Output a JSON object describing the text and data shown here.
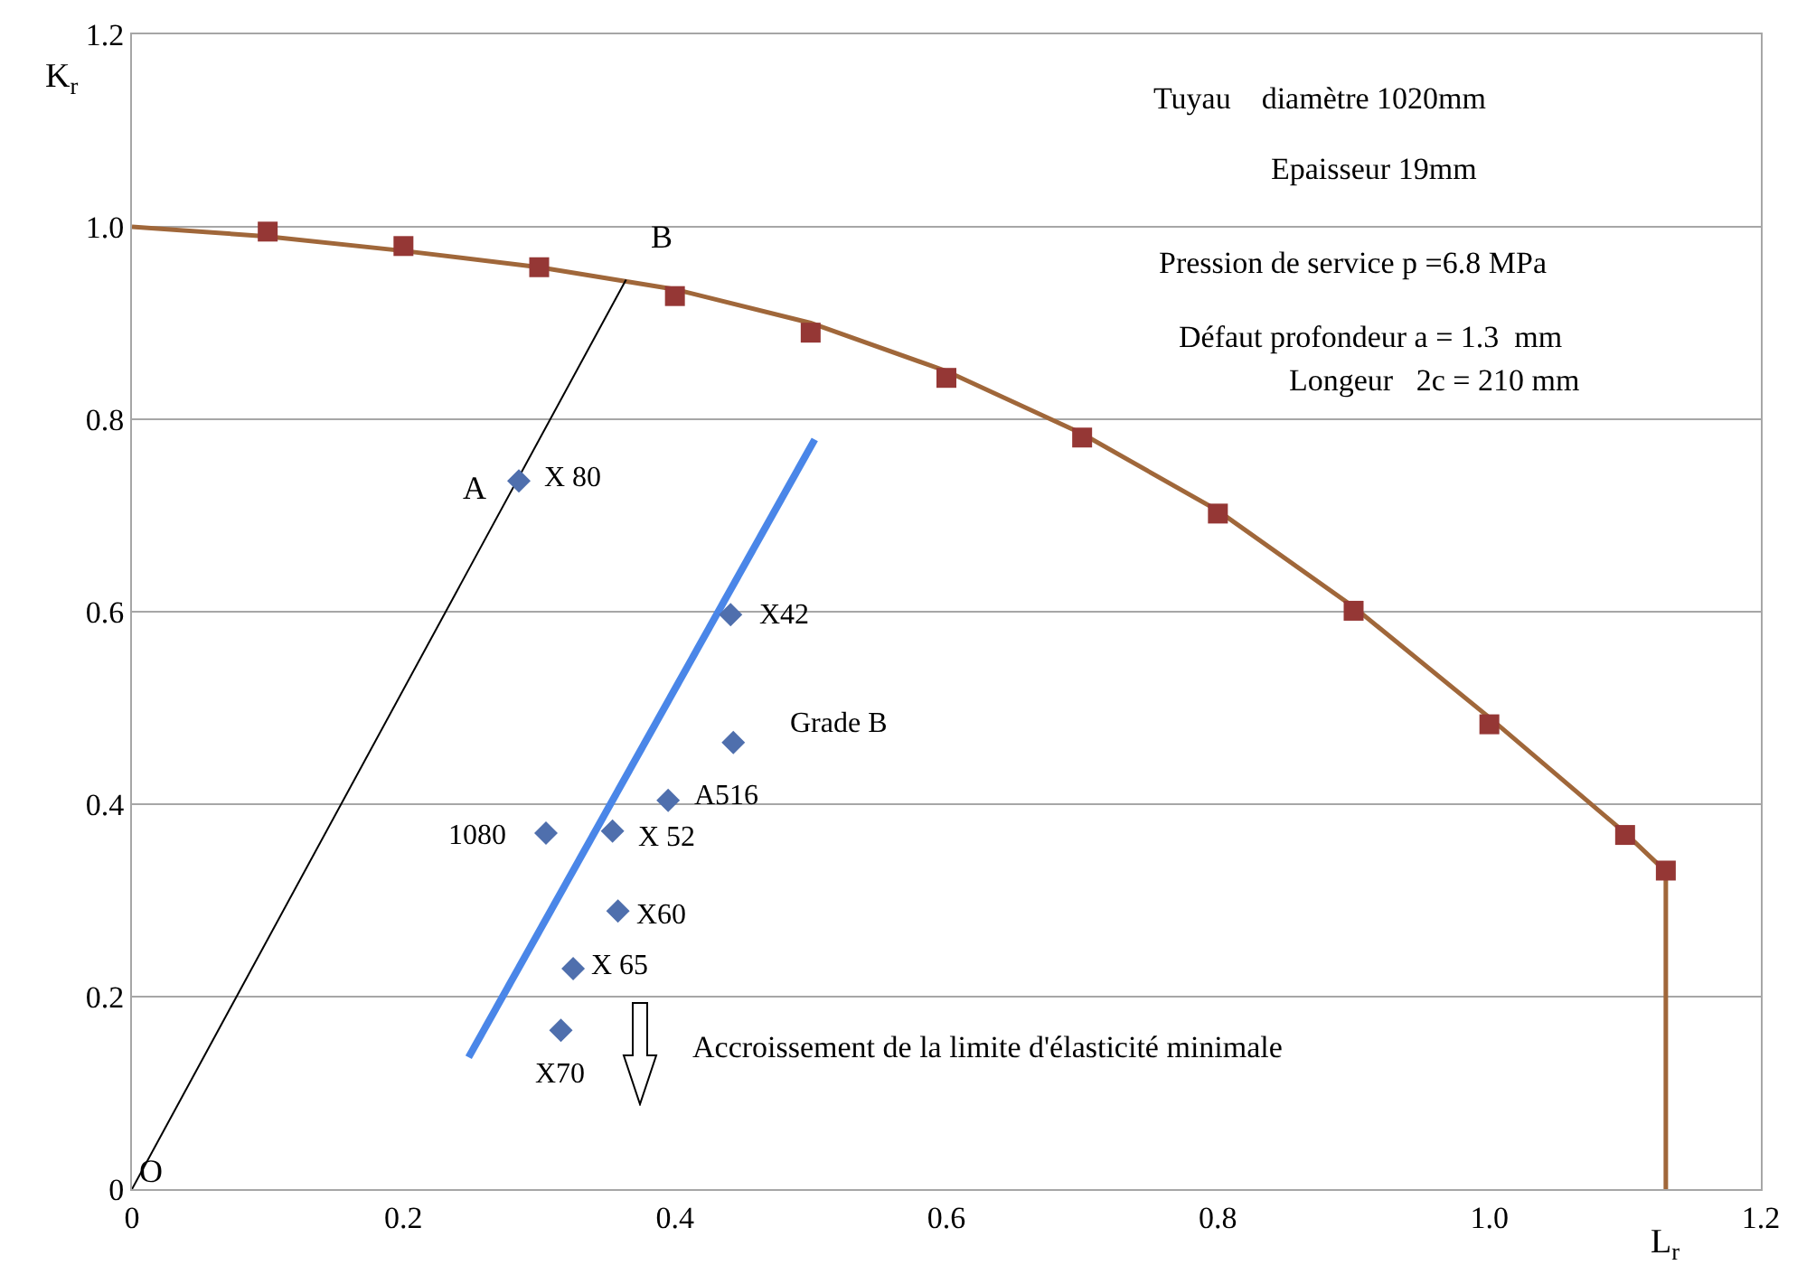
{
  "chart_data": {
    "type": "scatter",
    "xlabel": "L$_{r}$",
    "ylabel": "K$_{r}$",
    "xlim": [
      0,
      1.2
    ],
    "ylim": [
      0,
      1.2
    ],
    "xticks": [
      0,
      0.2,
      0.4,
      0.6,
      0.8,
      {
        "value": 1.0,
        "label": "1.0"
      },
      1.2
    ],
    "yticks": [
      0,
      0.2,
      0.4,
      0.6,
      0.8,
      {
        "value": 1.0,
        "label": "1.0"
      },
      1.2
    ],
    "grid": "y",
    "series": [
      {
        "type": "line",
        "color": "#a0673a",
        "marker": "none",
        "line_style": "solid",
        "x": [
          0,
          0.1,
          0.2,
          0.3,
          0.4,
          0.5,
          0.6,
          0.7,
          0.8,
          0.9,
          1.0,
          1.1,
          1.13,
          1.13
        ],
        "values": [
          1.0,
          0.99,
          0.975,
          0.958,
          0.935,
          0.9,
          0.85,
          0.785,
          0.705,
          0.605,
          0.49,
          0.37,
          0.33,
          0
        ]
      },
      {
        "color": "#953735",
        "marker": "square",
        "x": [
          0.1,
          0.2,
          0.3,
          0.4,
          0.5,
          0.6,
          0.7,
          0.8,
          0.9,
          1.0,
          1.1,
          1.13
        ],
        "values": [
          0.995,
          0.98,
          0.958,
          0.928,
          0.89,
          0.843,
          0.781,
          0.702,
          0.601,
          0.483,
          0.368,
          0.331
        ]
      },
      {
        "type": "line",
        "color": "#000000",
        "marker": "none",
        "line_style": "solid",
        "x": [
          0,
          0.364
        ],
        "values": [
          0,
          0.945
        ]
      },
      {
        "type": "line",
        "color": "#4a86e8",
        "marker": "none",
        "line_style": "solid",
        "x": [
          0.248,
          0.503
        ],
        "values": [
          0.137,
          0.779
        ]
      },
      {
        "color": "#4f6fad",
        "marker": "diamond",
        "x": [
          0.285,
          0.441,
          0.443,
          0.395,
          0.305,
          0.354,
          0.358,
          0.325,
          0.316
        ],
        "values": [
          0.736,
          0.597,
          0.464,
          0.404,
          0.37,
          0.372,
          0.289,
          0.229,
          0.165
        ]
      }
    ],
    "annotations": [
      {
        "text": "X 80",
        "x": 0.285,
        "y": 0.736
      },
      {
        "text": "X42",
        "x": 0.441,
        "y": 0.597
      },
      {
        "text": "Grade B",
        "x": 0.443,
        "y": 0.464
      },
      {
        "text": "A516",
        "x": 0.395,
        "y": 0.404
      },
      {
        "text": "1080",
        "x": 0.305,
        "y": 0.37
      },
      {
        "text": "X 52",
        "x": 0.354,
        "y": 0.372
      },
      {
        "text": "X60",
        "x": 0.358,
        "y": 0.289
      },
      {
        "text": "X 65",
        "x": 0.325,
        "y": 0.229
      },
      {
        "text": "X70",
        "x": 0.316,
        "y": 0.165
      },
      {
        "text": "A",
        "x": 0.285,
        "y": 0.736
      },
      {
        "text": "B",
        "x": 0.364,
        "y": 0.945
      },
      {
        "text": "O",
        "x": 0,
        "y": 0
      },
      "Tuyau    diamètre 1020mm",
      "Epaisseur 19mm",
      "Pression de service p =6.8 MPa",
      "Défaut profondeur a = 1.3  mm",
      "Longeur   2c = 210 mm",
      "Accroissement de la limite d'élasticité minimale"
    ]
  }
}
